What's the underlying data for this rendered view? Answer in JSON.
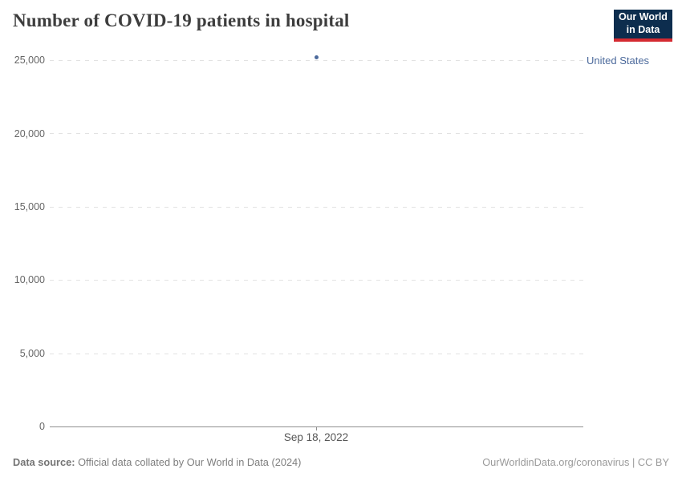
{
  "header": {
    "title": "Number of COVID-19 patients in hospital",
    "logo": {
      "line1": "Our World",
      "line2": "in Data",
      "bg_color": "#0d2d4e",
      "accent_color": "#d42a31"
    }
  },
  "legend": {
    "label": "United States",
    "color": "#4c6a9c"
  },
  "chart_data": {
    "type": "scatter",
    "title": "Number of COVID-19 patients in hospital",
    "series": [
      {
        "name": "United States",
        "color": "#4c6a9c",
        "points": [
          {
            "x": "Sep 18, 2022",
            "y": 25200
          }
        ]
      }
    ],
    "x_tick_labels": [
      "Sep 18, 2022"
    ],
    "y_ticks": [
      25000,
      20000,
      15000,
      10000,
      5000,
      0
    ],
    "y_tick_labels": [
      "25,000",
      "20,000",
      "15,000",
      "10,000",
      "5,000",
      "0"
    ],
    "ylim": [
      0,
      25000
    ],
    "grid": "horizontal-dashed",
    "legend_position": "right"
  },
  "footer": {
    "source_label": "Data source:",
    "source_text": " Official data collated by Our World in Data (2024)",
    "credit": "OurWorldinData.org/coronavirus | CC BY"
  }
}
